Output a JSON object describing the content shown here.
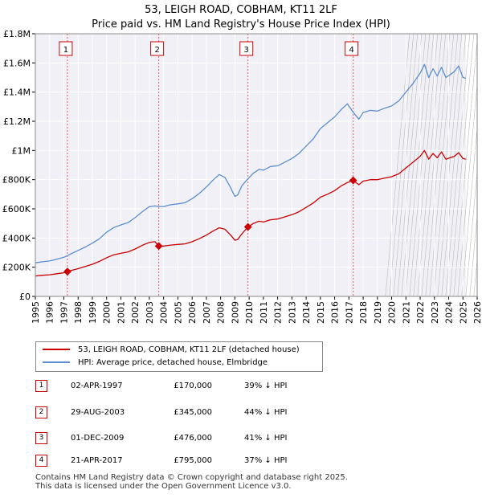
{
  "chart_data": {
    "type": "line",
    "title": "53, LEIGH ROAD, COBHAM, KT11 2LF",
    "subtitle": "Price paid vs. HM Land Registry's House Price Index (HPI)",
    "xlim": [
      1995,
      2026
    ],
    "ylim": [
      0,
      1800000
    ],
    "x_ticks": [
      "1995",
      "1996",
      "1997",
      "1998",
      "1999",
      "2000",
      "2001",
      "2002",
      "2003",
      "2004",
      "2005",
      "2006",
      "2007",
      "2008",
      "2009",
      "2010",
      "2011",
      "2012",
      "2013",
      "2014",
      "2015",
      "2016",
      "2017",
      "2018",
      "2019",
      "2020",
      "2021",
      "2022",
      "2023",
      "2024",
      "2025",
      "2026"
    ],
    "y_ticks": [
      {
        "value": 0,
        "label": "£0"
      },
      {
        "value": 200000,
        "label": "£200K"
      },
      {
        "value": 400000,
        "label": "£400K"
      },
      {
        "value": 600000,
        "label": "£600K"
      },
      {
        "value": 800000,
        "label": "£800K"
      },
      {
        "value": 1000000,
        "label": "£1M"
      },
      {
        "value": 1200000,
        "label": "£1.2M"
      },
      {
        "value": 1400000,
        "label": "£1.4M"
      },
      {
        "value": 1600000,
        "label": "£1.6M"
      },
      {
        "value": 1800000,
        "label": "£1.8M"
      }
    ],
    "grid": true,
    "series": [
      {
        "name": "53, LEIGH ROAD, COBHAM, KT11 2LF (detached house)",
        "color": "#cc0000",
        "x": [
          1995.0,
          1995.5,
          1996.0,
          1996.5,
          1997.0,
          1997.25,
          1997.5,
          1998.0,
          1998.5,
          1999.0,
          1999.5,
          2000.0,
          2000.5,
          2001.0,
          2001.5,
          2002.0,
          2002.5,
          2003.0,
          2003.4,
          2003.66,
          2004.0,
          2004.5,
          2005.0,
          2005.5,
          2006.0,
          2006.5,
          2007.0,
          2007.5,
          2007.9,
          2008.3,
          2008.7,
          2009.0,
          2009.2,
          2009.5,
          2009.92,
          2010.3,
          2010.7,
          2011.0,
          2011.5,
          2012.0,
          2012.5,
          2013.0,
          2013.5,
          2014.0,
          2014.5,
          2015.0,
          2015.5,
          2016.0,
          2016.5,
          2016.9,
          2017.3,
          2017.7,
          2018.0,
          2018.5,
          2019.0,
          2019.5,
          2020.0,
          2020.5,
          2021.0,
          2021.5,
          2022.0,
          2022.3,
          2022.6,
          2022.9,
          2023.2,
          2023.5,
          2023.8,
          2024.1,
          2024.4,
          2024.7,
          2025.0,
          2025.2
        ],
        "y": [
          140000,
          145000,
          148000,
          155000,
          162000,
          170000,
          178000,
          190000,
          205000,
          220000,
          240000,
          265000,
          285000,
          295000,
          305000,
          325000,
          350000,
          370000,
          375000,
          345000,
          345000,
          352000,
          356000,
          360000,
          375000,
          395000,
          420000,
          450000,
          470000,
          460000,
          420000,
          385000,
          390000,
          430000,
          476000,
          500000,
          515000,
          510000,
          525000,
          530000,
          545000,
          560000,
          580000,
          610000,
          640000,
          680000,
          700000,
          725000,
          760000,
          780000,
          795000,
          765000,
          790000,
          800000,
          800000,
          810000,
          820000,
          840000,
          880000,
          920000,
          960000,
          1000000,
          940000,
          980000,
          950000,
          990000,
          940000,
          950000,
          960000,
          985000,
          945000,
          940000
        ]
      },
      {
        "name": "HPI: Average price, detached house, Elmbridge",
        "color": "#5b8fcf",
        "x": [
          1995.0,
          1995.5,
          1996.0,
          1996.5,
          1997.0,
          1997.25,
          1997.5,
          1998.0,
          1998.5,
          1999.0,
          1999.5,
          2000.0,
          2000.5,
          2001.0,
          2001.5,
          2002.0,
          2002.5,
          2003.0,
          2003.4,
          2003.66,
          2004.0,
          2004.5,
          2005.0,
          2005.5,
          2006.0,
          2006.5,
          2007.0,
          2007.5,
          2007.9,
          2008.3,
          2008.7,
          2009.0,
          2009.2,
          2009.5,
          2009.92,
          2010.3,
          2010.7,
          2011.0,
          2011.5,
          2012.0,
          2012.5,
          2013.0,
          2013.5,
          2014.0,
          2014.5,
          2015.0,
          2015.5,
          2016.0,
          2016.5,
          2016.9,
          2017.3,
          2017.7,
          2018.0,
          2018.5,
          2019.0,
          2019.5,
          2020.0,
          2020.5,
          2021.0,
          2021.5,
          2022.0,
          2022.3,
          2022.6,
          2022.9,
          2023.2,
          2023.5,
          2023.8,
          2024.1,
          2024.4,
          2024.7,
          2025.0,
          2025.2
        ],
        "y": [
          230000,
          237000,
          243000,
          255000,
          268000,
          279000,
          292000,
          315000,
          338000,
          365000,
          395000,
          440000,
          472000,
          490000,
          505000,
          540000,
          580000,
          615000,
          620000,
          616000,
          616000,
          628000,
          634000,
          642000,
          670000,
          705000,
          750000,
          800000,
          835000,
          815000,
          745000,
          685000,
          695000,
          760000,
          806000,
          845000,
          870000,
          865000,
          890000,
          895000,
          920000,
          945000,
          980000,
          1030000,
          1080000,
          1150000,
          1190000,
          1230000,
          1285000,
          1320000,
          1262000,
          1215000,
          1260000,
          1275000,
          1270000,
          1290000,
          1305000,
          1340000,
          1400000,
          1460000,
          1530000,
          1590000,
          1500000,
          1560000,
          1510000,
          1570000,
          1500000,
          1520000,
          1540000,
          1580000,
          1500000,
          1495000
        ]
      }
    ],
    "sales": [
      {
        "marker": "1",
        "x": 1997.25,
        "y": 170000
      },
      {
        "marker": "2",
        "x": 2003.66,
        "y": 345000
      },
      {
        "marker": "3",
        "x": 2009.92,
        "y": 476000
      },
      {
        "marker": "4",
        "x": 2017.3,
        "y": 795000
      }
    ]
  },
  "legend": {
    "property": "53, LEIGH ROAD, COBHAM, KT11 2LF (detached house)",
    "hpi": "HPI: Average price, detached house, Elmbridge"
  },
  "transactions": [
    {
      "marker": "1",
      "date": "02-APR-1997",
      "price": "£170,000",
      "hpi_delta": "39% ↓ HPI"
    },
    {
      "marker": "2",
      "date": "29-AUG-2003",
      "price": "£345,000",
      "hpi_delta": "44% ↓ HPI"
    },
    {
      "marker": "3",
      "date": "01-DEC-2009",
      "price": "£476,000",
      "hpi_delta": "41% ↓ HPI"
    },
    {
      "marker": "4",
      "date": "21-APR-2017",
      "price": "£795,000",
      "hpi_delta": "37% ↓ HPI"
    }
  ],
  "footer": {
    "line1": "Contains HM Land Registry data © Crown copyright and database right 2025.",
    "line2": "This data is licensed under the Open Government Licence v3.0."
  }
}
